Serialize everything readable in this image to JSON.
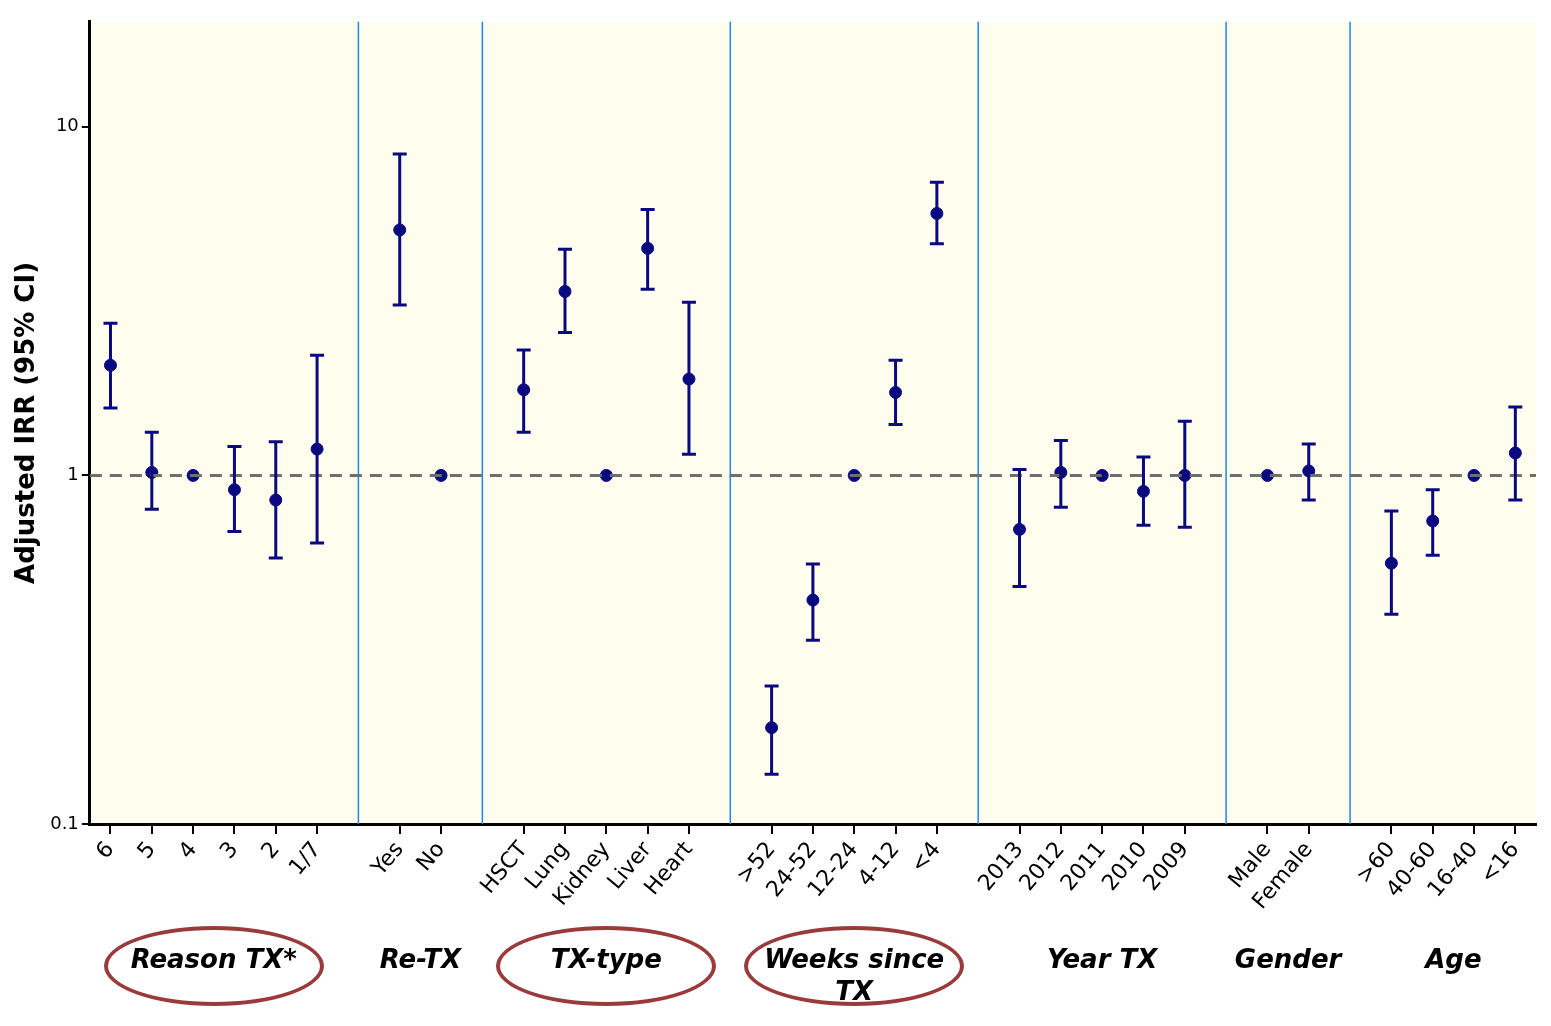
{
  "chart_data": {
    "type": "scatter",
    "ylabel": "Adjusted IRR (95% CI)",
    "categories": [
      "6",
      "5",
      "4",
      "3",
      "2",
      "1/7",
      null,
      "Yes",
      "No",
      null,
      "HSCT",
      "Lung",
      "Kidney",
      "Liver",
      "Heart",
      null,
      ">52",
      "24-52",
      "12-24",
      "4-12",
      "<4",
      null,
      "2013",
      "2012",
      "2011",
      "2010",
      "2009",
      null,
      "Male",
      "Female",
      null,
      ">60",
      "40-60",
      "16-40",
      "<16"
    ],
    "series": [
      {
        "color": "#0a0a80",
        "values": [
          2.07,
          1.02,
          1,
          0.91,
          0.85,
          1.19,
          null,
          5.06,
          1,
          null,
          1.76,
          3.37,
          1,
          4.48,
          1.89,
          null,
          0.189,
          0.439,
          1,
          1.73,
          5.64,
          null,
          0.7,
          1.02,
          1,
          0.9,
          1,
          null,
          1,
          1.03,
          null,
          0.56,
          0.74,
          1,
          1.16
        ],
        "errors": [
          [
            1.56,
            2.73
          ],
          [
            0.8,
            1.33
          ],
          null,
          [
            0.69,
            1.21
          ],
          [
            0.58,
            1.25
          ],
          [
            0.64,
            2.21
          ],
          null,
          [
            3.08,
            8.35
          ],
          null,
          null,
          [
            1.33,
            2.29
          ],
          [
            2.57,
            4.45
          ],
          null,
          [
            3.42,
            5.79
          ],
          [
            1.15,
            3.14
          ],
          null,
          [
            0.139,
            0.249
          ],
          [
            0.337,
            0.557
          ],
          null,
          [
            1.4,
            2.14
          ],
          [
            4.62,
            6.93
          ],
          null,
          [
            0.48,
            1.04
          ],
          [
            0.81,
            1.26
          ],
          null,
          [
            0.72,
            1.13
          ],
          [
            0.71,
            1.43
          ],
          null,
          null,
          [
            0.85,
            1.23
          ],
          null,
          [
            0.4,
            0.79
          ],
          [
            0.59,
            0.91
          ],
          null,
          [
            0.85,
            1.57
          ]
        ]
      }
    ],
    "grid": "x",
    "log": "y",
    "ylim": [
      0.1,
      20
    ],
    "yticks": [
      0.1,
      1,
      10
    ],
    "marker": "circle",
    "legend": false,
    "ref_lines": [
      {
        "axis": "y",
        "value": 1,
        "color": "#6e6e6e",
        "line_style": "dashed"
      }
    ],
    "annotations": [
      "Reason TX*",
      "Re-TX",
      "TX-type",
      "Weeks since TX",
      "Year TX",
      "Gender",
      "Age"
    ]
  }
}
